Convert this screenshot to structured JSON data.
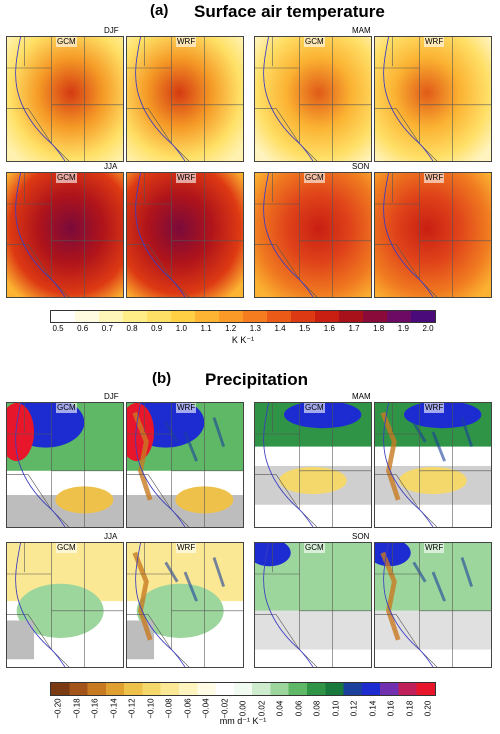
{
  "sections": [
    {
      "tag": "(a)",
      "title": "Surface air temperature",
      "groups": [
        {
          "season": "DJF",
          "left": "GCM",
          "right": "WRF"
        },
        {
          "season": "MAM",
          "left": "GCM",
          "right": "WRF"
        },
        {
          "season": "JJA",
          "left": "GCM",
          "right": "WRF"
        },
        {
          "season": "SON",
          "left": "GCM",
          "right": "WRF"
        }
      ],
      "colorbar": {
        "ticks": [
          "0.5",
          "0.6",
          "0.7",
          "0.8",
          "0.9",
          "1.0",
          "1.1",
          "1.2",
          "1.3",
          "1.4",
          "1.5",
          "1.6",
          "1.7",
          "1.8",
          "1.9",
          "2.0"
        ],
        "unit": "K K⁻¹",
        "colors": [
          "#ffffff",
          "#fffbe0",
          "#fff6b8",
          "#ffee88",
          "#ffe066",
          "#ffcf44",
          "#fdb432",
          "#fb9a26",
          "#f57d1f",
          "#ec5a18",
          "#dd3a13",
          "#c91e12",
          "#a8101a",
          "#8a0a3a",
          "#6d0a63",
          "#4a0a7a"
        ]
      }
    },
    {
      "tag": "(b)",
      "title": "Precipitation",
      "groups": [
        {
          "season": "DJF",
          "left": "GCM",
          "right": "WRF"
        },
        {
          "season": "MAM",
          "left": "GCM",
          "right": "WRF"
        },
        {
          "season": "JJA",
          "left": "GCM",
          "right": "WRF"
        },
        {
          "season": "SON",
          "left": "GCM",
          "right": "WRF"
        }
      ],
      "colorbar": {
        "ticks": [
          "−0.20",
          "−0.18",
          "−0.16",
          "−0.14",
          "−0.12",
          "−0.10",
          "−0.08",
          "−0.06",
          "−0.04",
          "−0.02",
          "0.00",
          "0.02",
          "0.04",
          "0.06",
          "0.08",
          "0.10",
          "0.12",
          "0.14",
          "0.16",
          "0.18",
          "0.20"
        ],
        "unit": "mm d⁻¹ K⁻¹",
        "colors": [
          "#7a3a12",
          "#a2541a",
          "#c87a22",
          "#e0a030",
          "#eec24a",
          "#f5d86c",
          "#fae894",
          "#fdf4c0",
          "#fffbe4",
          "#ffffff",
          "#f2fbf2",
          "#cdeccd",
          "#9cd69c",
          "#5fb865",
          "#2f9446",
          "#19783c",
          "#1b3f9c",
          "#1c2cd0",
          "#7030b0",
          "#c0205a",
          "#e8162a"
        ]
      }
    }
  ]
}
